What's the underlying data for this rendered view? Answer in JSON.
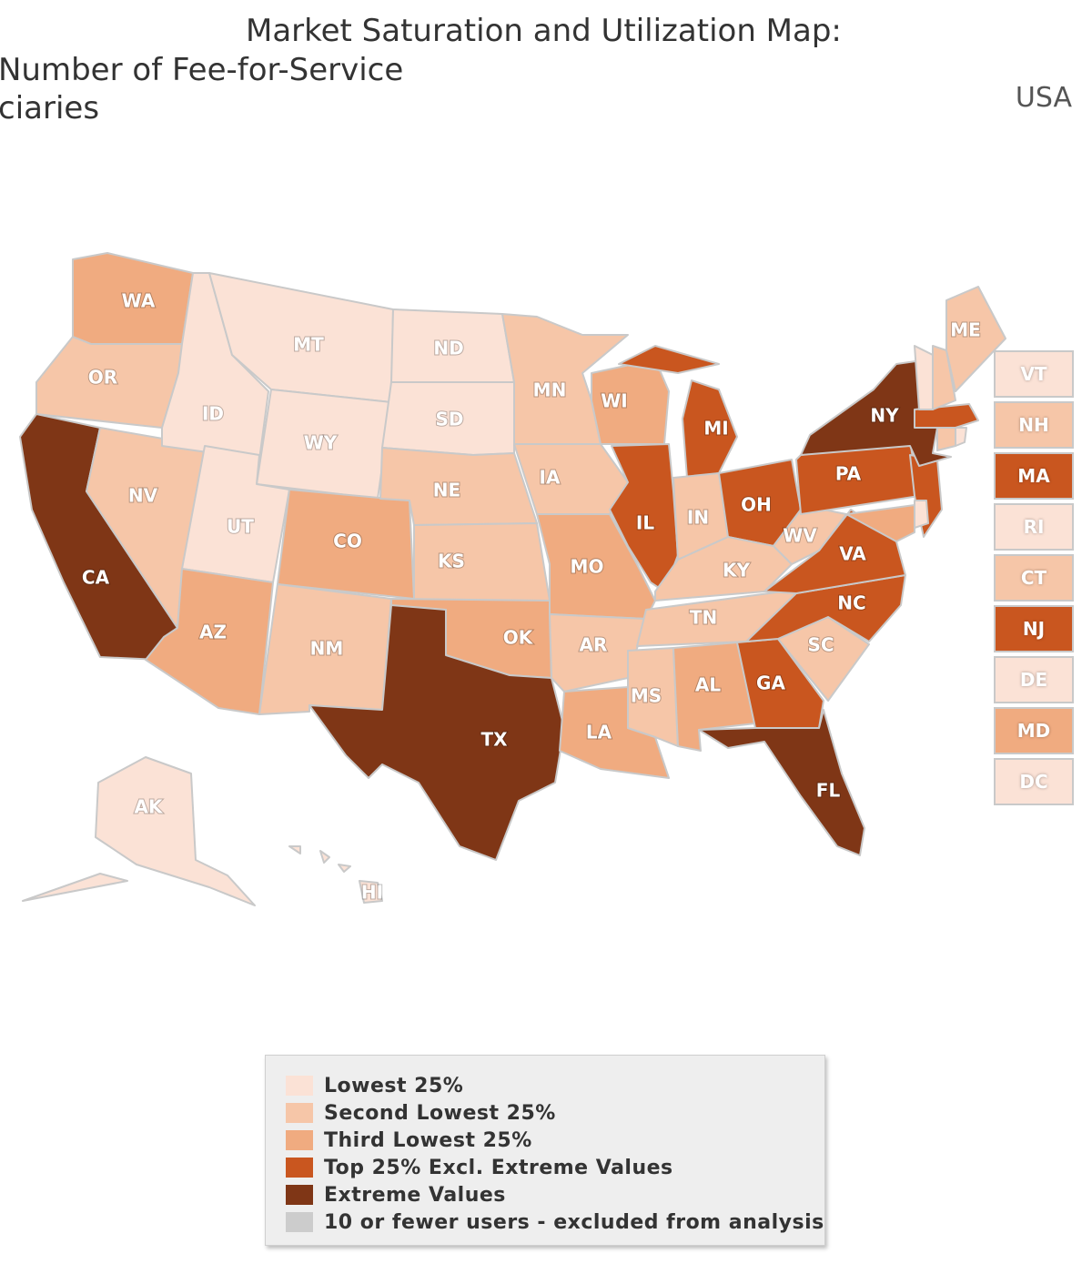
{
  "title": {
    "line1": "Market Saturation and Utilization Map:",
    "line2": "Number of Fee-for-Service",
    "line3": "ciaries"
  },
  "region": "USA",
  "colors": {
    "q1": "#fbe2d6",
    "q2": "#f6c6a8",
    "q3": "#f0ab80",
    "q4": "#c9561f",
    "extreme": "#7f3616",
    "excluded": "#cccccc"
  },
  "legend": [
    {
      "label": "Lowest 25%",
      "tier": "q1"
    },
    {
      "label": "Second Lowest 25%",
      "tier": "q2"
    },
    {
      "label": "Third Lowest 25%",
      "tier": "q3"
    },
    {
      "label": "Top 25% Excl. Extreme Values",
      "tier": "q4"
    },
    {
      "label": "Extreme Values",
      "tier": "extreme"
    },
    {
      "label": "10 or fewer users - excluded from analysis",
      "tier": "excluded"
    }
  ],
  "states": [
    {
      "abbr": "WA",
      "tier": "q3"
    },
    {
      "abbr": "OR",
      "tier": "q2"
    },
    {
      "abbr": "CA",
      "tier": "extreme"
    },
    {
      "abbr": "NV",
      "tier": "q2"
    },
    {
      "abbr": "ID",
      "tier": "q1"
    },
    {
      "abbr": "MT",
      "tier": "q1"
    },
    {
      "abbr": "WY",
      "tier": "q1"
    },
    {
      "abbr": "UT",
      "tier": "q1"
    },
    {
      "abbr": "AZ",
      "tier": "q3"
    },
    {
      "abbr": "CO",
      "tier": "q3"
    },
    {
      "abbr": "NM",
      "tier": "q2"
    },
    {
      "abbr": "ND",
      "tier": "q1"
    },
    {
      "abbr": "SD",
      "tier": "q1"
    },
    {
      "abbr": "NE",
      "tier": "q2"
    },
    {
      "abbr": "KS",
      "tier": "q2"
    },
    {
      "abbr": "OK",
      "tier": "q3"
    },
    {
      "abbr": "TX",
      "tier": "extreme"
    },
    {
      "abbr": "MN",
      "tier": "q2"
    },
    {
      "abbr": "IA",
      "tier": "q2"
    },
    {
      "abbr": "MO",
      "tier": "q3"
    },
    {
      "abbr": "AR",
      "tier": "q2"
    },
    {
      "abbr": "LA",
      "tier": "q3"
    },
    {
      "abbr": "WI",
      "tier": "q3"
    },
    {
      "abbr": "IL",
      "tier": "q4"
    },
    {
      "abbr": "MI",
      "tier": "q4"
    },
    {
      "abbr": "IN",
      "tier": "q2"
    },
    {
      "abbr": "OH",
      "tier": "q4"
    },
    {
      "abbr": "KY",
      "tier": "q2"
    },
    {
      "abbr": "TN",
      "tier": "q2"
    },
    {
      "abbr": "MS",
      "tier": "q2"
    },
    {
      "abbr": "AL",
      "tier": "q3"
    },
    {
      "abbr": "GA",
      "tier": "q4"
    },
    {
      "abbr": "FL",
      "tier": "extreme"
    },
    {
      "abbr": "SC",
      "tier": "q2"
    },
    {
      "abbr": "NC",
      "tier": "q4"
    },
    {
      "abbr": "VA",
      "tier": "q4"
    },
    {
      "abbr": "WV",
      "tier": "q2"
    },
    {
      "abbr": "PA",
      "tier": "q4"
    },
    {
      "abbr": "NY",
      "tier": "extreme"
    },
    {
      "abbr": "ME",
      "tier": "q2"
    },
    {
      "abbr": "AK",
      "tier": "q1"
    },
    {
      "abbr": "HI",
      "tier": "q1"
    }
  ],
  "small_states": [
    {
      "abbr": "VT",
      "tier": "q1"
    },
    {
      "abbr": "NH",
      "tier": "q2"
    },
    {
      "abbr": "MA",
      "tier": "q4"
    },
    {
      "abbr": "RI",
      "tier": "q1"
    },
    {
      "abbr": "CT",
      "tier": "q2"
    },
    {
      "abbr": "NJ",
      "tier": "q4"
    },
    {
      "abbr": "DE",
      "tier": "q1"
    },
    {
      "abbr": "MD",
      "tier": "q3"
    },
    {
      "abbr": "DC",
      "tier": "q1"
    }
  ]
}
